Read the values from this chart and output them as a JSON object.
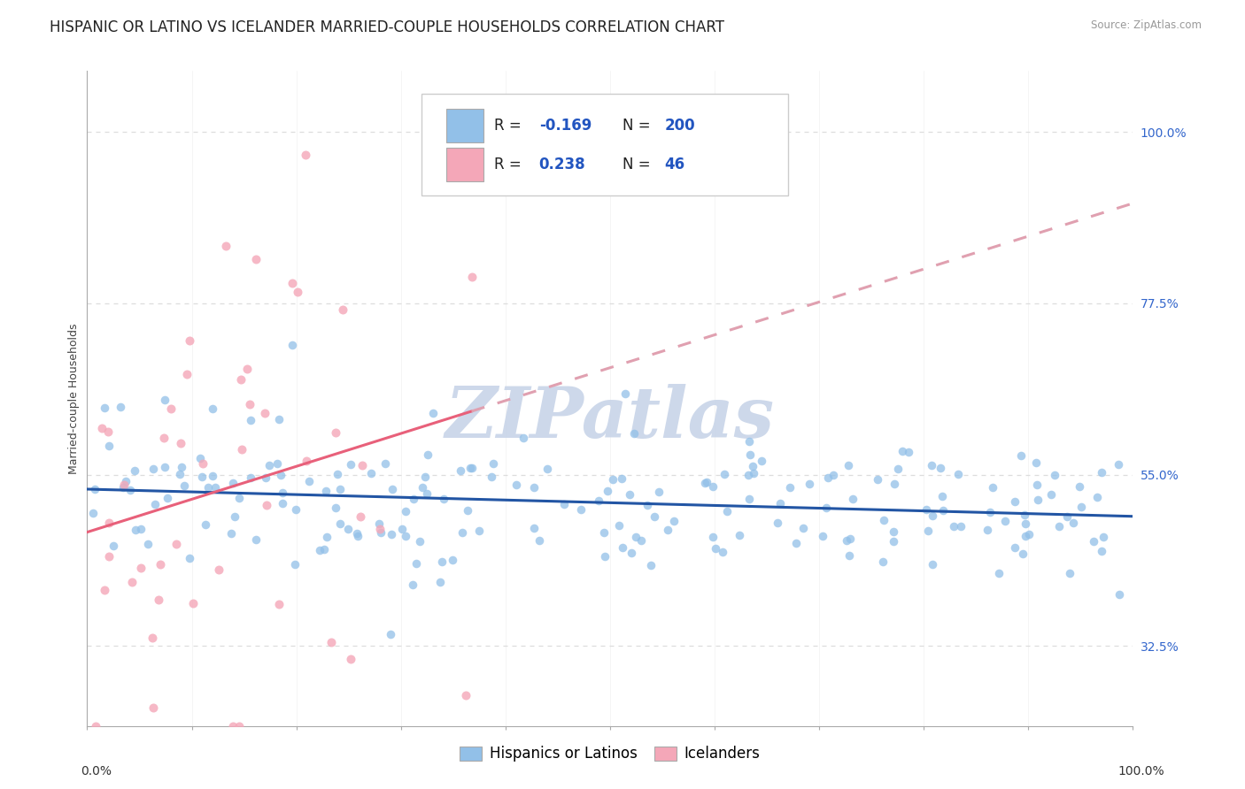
{
  "title": "HISPANIC OR LATINO VS ICELANDER MARRIED-COUPLE HOUSEHOLDS CORRELATION CHART",
  "source": "Source: ZipAtlas.com",
  "ylabel": "Married-couple Households",
  "ytick_labels": [
    "32.5%",
    "55.0%",
    "77.5%",
    "100.0%"
  ],
  "ytick_values": [
    0.325,
    0.55,
    0.775,
    1.0
  ],
  "legend_r_blue": "-0.169",
  "legend_n_blue": "200",
  "legend_r_pink": "0.238",
  "legend_n_pink": "46",
  "blue_color": "#92C0E8",
  "pink_color": "#F4A7B8",
  "blue_line_color": "#2255A4",
  "pink_line_color": "#E8607A",
  "pink_dashed_color": "#E0A0B0",
  "background_color": "#FFFFFF",
  "watermark_text": "ZIPatlas",
  "watermark_color": "#C8D4E8",
  "seed": 42,
  "blue_n": 200,
  "pink_n": 46,
  "blue_R": -0.169,
  "pink_R": 0.238,
  "xlim": [
    0.0,
    1.0
  ],
  "ylim": [
    0.22,
    1.08
  ],
  "grid_color": "#DDDDDD",
  "title_fontsize": 12,
  "axis_label_fontsize": 9,
  "tick_fontsize": 10,
  "legend_fontsize": 12
}
